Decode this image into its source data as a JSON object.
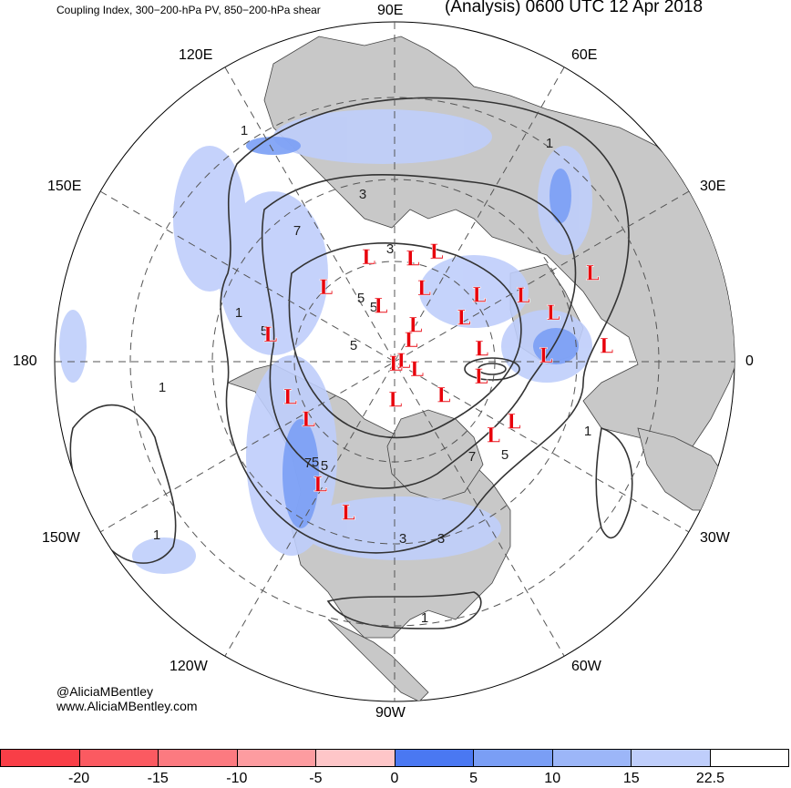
{
  "header": {
    "title_left": "Coupling Index, 300−200-hPa PV, 850−200-hPa shear",
    "title_right": "(Analysis) 0600 UTC 12 Apr 2018"
  },
  "longitude_labels": {
    "lon_90e": "90E",
    "lon_120e": "120E",
    "lon_60e": "60E",
    "lon_150e": "150E",
    "lon_30e": "30E",
    "lon_180": "180",
    "lon_0": "0",
    "lon_150w": "150W",
    "lon_30w": "30W",
    "lon_120w": "120W",
    "lon_60w": "60W",
    "lon_90w": "90W"
  },
  "credits": {
    "handle": "@AliciaMBentley",
    "website": "www.AliciaMBentley.com"
  },
  "low_marker_label": "L",
  "lows": [
    {
      "lon": 80,
      "lat": 56
    },
    {
      "lon": 69,
      "lat": 52
    },
    {
      "lon": 38,
      "lat": 55
    },
    {
      "lon": 27,
      "lat": 44
    },
    {
      "lon": 104,
      "lat": 55
    },
    {
      "lon": 68,
      "lat": 64
    },
    {
      "lon": 17,
      "lat": 38
    },
    {
      "lon": 32,
      "lat": 63
    },
    {
      "lon": 2,
      "lat": 42
    },
    {
      "lon": 133,
      "lat": 57
    },
    {
      "lon": 104,
      "lat": 71
    },
    {
      "lon": 60,
      "lat": 76
    },
    {
      "lon": 52,
      "lat": 81
    },
    {
      "lon": 8,
      "lat": 61
    },
    {
      "lon": 1,
      "lat": 87
    },
    {
      "lon": -65,
      "lat": 89
    },
    {
      "lon": -20,
      "lat": 82
    },
    {
      "lon": -35,
      "lat": 70
    },
    {
      "lon": -10,
      "lat": 61
    },
    {
      "lon": 168,
      "lat": 49
    },
    {
      "lon": -161,
      "lat": 54
    },
    {
      "lon": -146,
      "lat": 56
    },
    {
      "lon": -89,
      "lat": 77
    },
    {
      "lon": -27,
      "lat": 47
    },
    {
      "lon": -37,
      "lat": 50
    },
    {
      "lon": -121,
      "lat": 44
    },
    {
      "lon": -107,
      "lat": 40
    },
    {
      "lon": 4,
      "lat": 26
    },
    {
      "lon": 24,
      "lat": 25
    }
  ],
  "contour_labels": [
    "1",
    "1",
    "1",
    "1",
    "1",
    "1",
    "1",
    "3",
    "3",
    "3",
    "3",
    "5",
    "5",
    "5",
    "5",
    "5",
    "5",
    "5",
    "7",
    "7",
    "7"
  ],
  "legend": {
    "colors": [
      "#f93e47",
      "#fb5a61",
      "#fc7a80",
      "#fd9ca0",
      "#fec6c8",
      "#4a78f2",
      "#7a9ef5",
      "#9cb6f8",
      "#bfcefb",
      "#ffffff"
    ],
    "ticks": [
      "-20",
      "-15",
      "-10",
      "-5",
      "0",
      "5",
      "10",
      "15",
      "22.5"
    ]
  },
  "colors": {
    "land": "#c8c8c8",
    "ocean": "#ffffff",
    "contour": "#333333",
    "low_marker": "#e8000b",
    "grid": "#555555"
  }
}
